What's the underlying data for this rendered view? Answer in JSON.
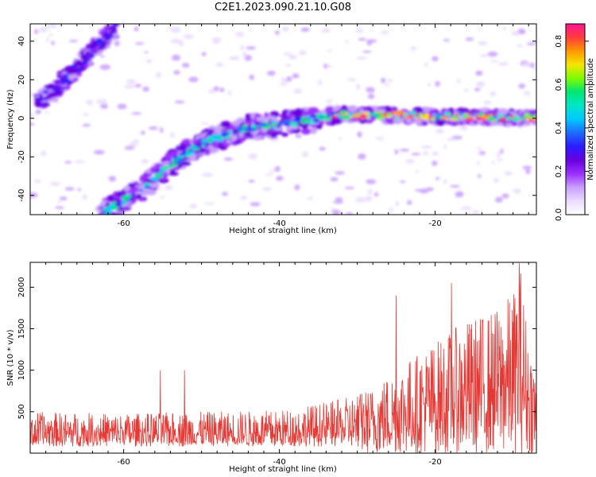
{
  "title": "C2E1.2023.090.21.10.G08",
  "colors": {
    "snr_line": "#e53935",
    "cmap": [
      "#ffffff",
      "#eadbff",
      "#c9a0ff",
      "#9b30ff",
      "#6a00e0",
      "#2a1cff",
      "#1e6bff",
      "#00c8ff",
      "#00e6c8",
      "#00e676",
      "#7cfc00",
      "#f5e600",
      "#ff9800",
      "#ff3d3d",
      "#ff1493"
    ]
  },
  "chart_data": [
    {
      "type": "heatmap",
      "xlabel": "Height of straight line (km)",
      "ylabel": "Frequency (Hz)",
      "xlim": [
        -72,
        -7
      ],
      "ylim": [
        -50,
        49
      ],
      "xticks": [
        -60,
        -40,
        -20
      ],
      "xtick_labels": [
        "-60",
        "-40",
        "-20"
      ],
      "yticks": [
        -40,
        -20,
        0,
        20,
        40
      ],
      "ytick_labels": [
        "-40",
        "-20",
        "0",
        "20",
        "40"
      ],
      "colorbar": {
        "label": "Normalized spectral amplitude",
        "range": [
          0,
          0.88
        ],
        "ticks": [
          0.0,
          0.2,
          0.4,
          0.6,
          0.8
        ],
        "tick_labels": [
          "0.0",
          "0.2",
          "0.4",
          "0.6",
          "0.8"
        ]
      },
      "ridges": [
        {
          "points": [
            [
              -71,
              8
            ],
            [
              -67,
              22
            ],
            [
              -64,
              35
            ],
            [
              -61,
              48
            ]
          ],
          "peak": 0.35
        },
        {
          "points": [
            [
              -63,
              -50
            ],
            [
              -58,
              -38
            ],
            [
              -54,
              -24
            ],
            [
              -50,
              -13
            ],
            [
              -44,
              -5
            ],
            [
              -38,
              -2
            ],
            [
              -32,
              2
            ],
            [
              -20,
              1
            ],
            [
              -7,
              0
            ]
          ],
          "peak": 0.88
        }
      ]
    },
    {
      "type": "line",
      "xlabel": "Height of straight line (km)",
      "ylabel": "SNR (10 * v/v)",
      "xlim": [
        -72,
        -7
      ],
      "ylim": [
        0,
        2300
      ],
      "xticks": [
        -60,
        -40,
        -20
      ],
      "xtick_labels": [
        "-60",
        "-40",
        "-20"
      ],
      "yticks": [
        500,
        1000,
        1500,
        2000
      ],
      "ytick_labels": [
        "500",
        "1000",
        "1500",
        "2000"
      ],
      "envelope": {
        "x": [
          -72,
          -60,
          -50,
          -40,
          -32,
          -28,
          -24,
          -20,
          -16,
          -12,
          -10,
          -9,
          -8,
          -7
        ],
        "y": [
          500,
          480,
          500,
          520,
          650,
          800,
          1100,
          1350,
          1600,
          1750,
          1950,
          2250,
          1400,
          1000
        ]
      },
      "spikes": [
        {
          "x": -55.3,
          "y": 1000
        },
        {
          "x": -52.2,
          "y": 1000
        },
        {
          "x": -25,
          "y": 1900
        },
        {
          "x": -17.9,
          "y": 2050
        },
        {
          "x": -9.2,
          "y": 2290
        }
      ]
    }
  ]
}
